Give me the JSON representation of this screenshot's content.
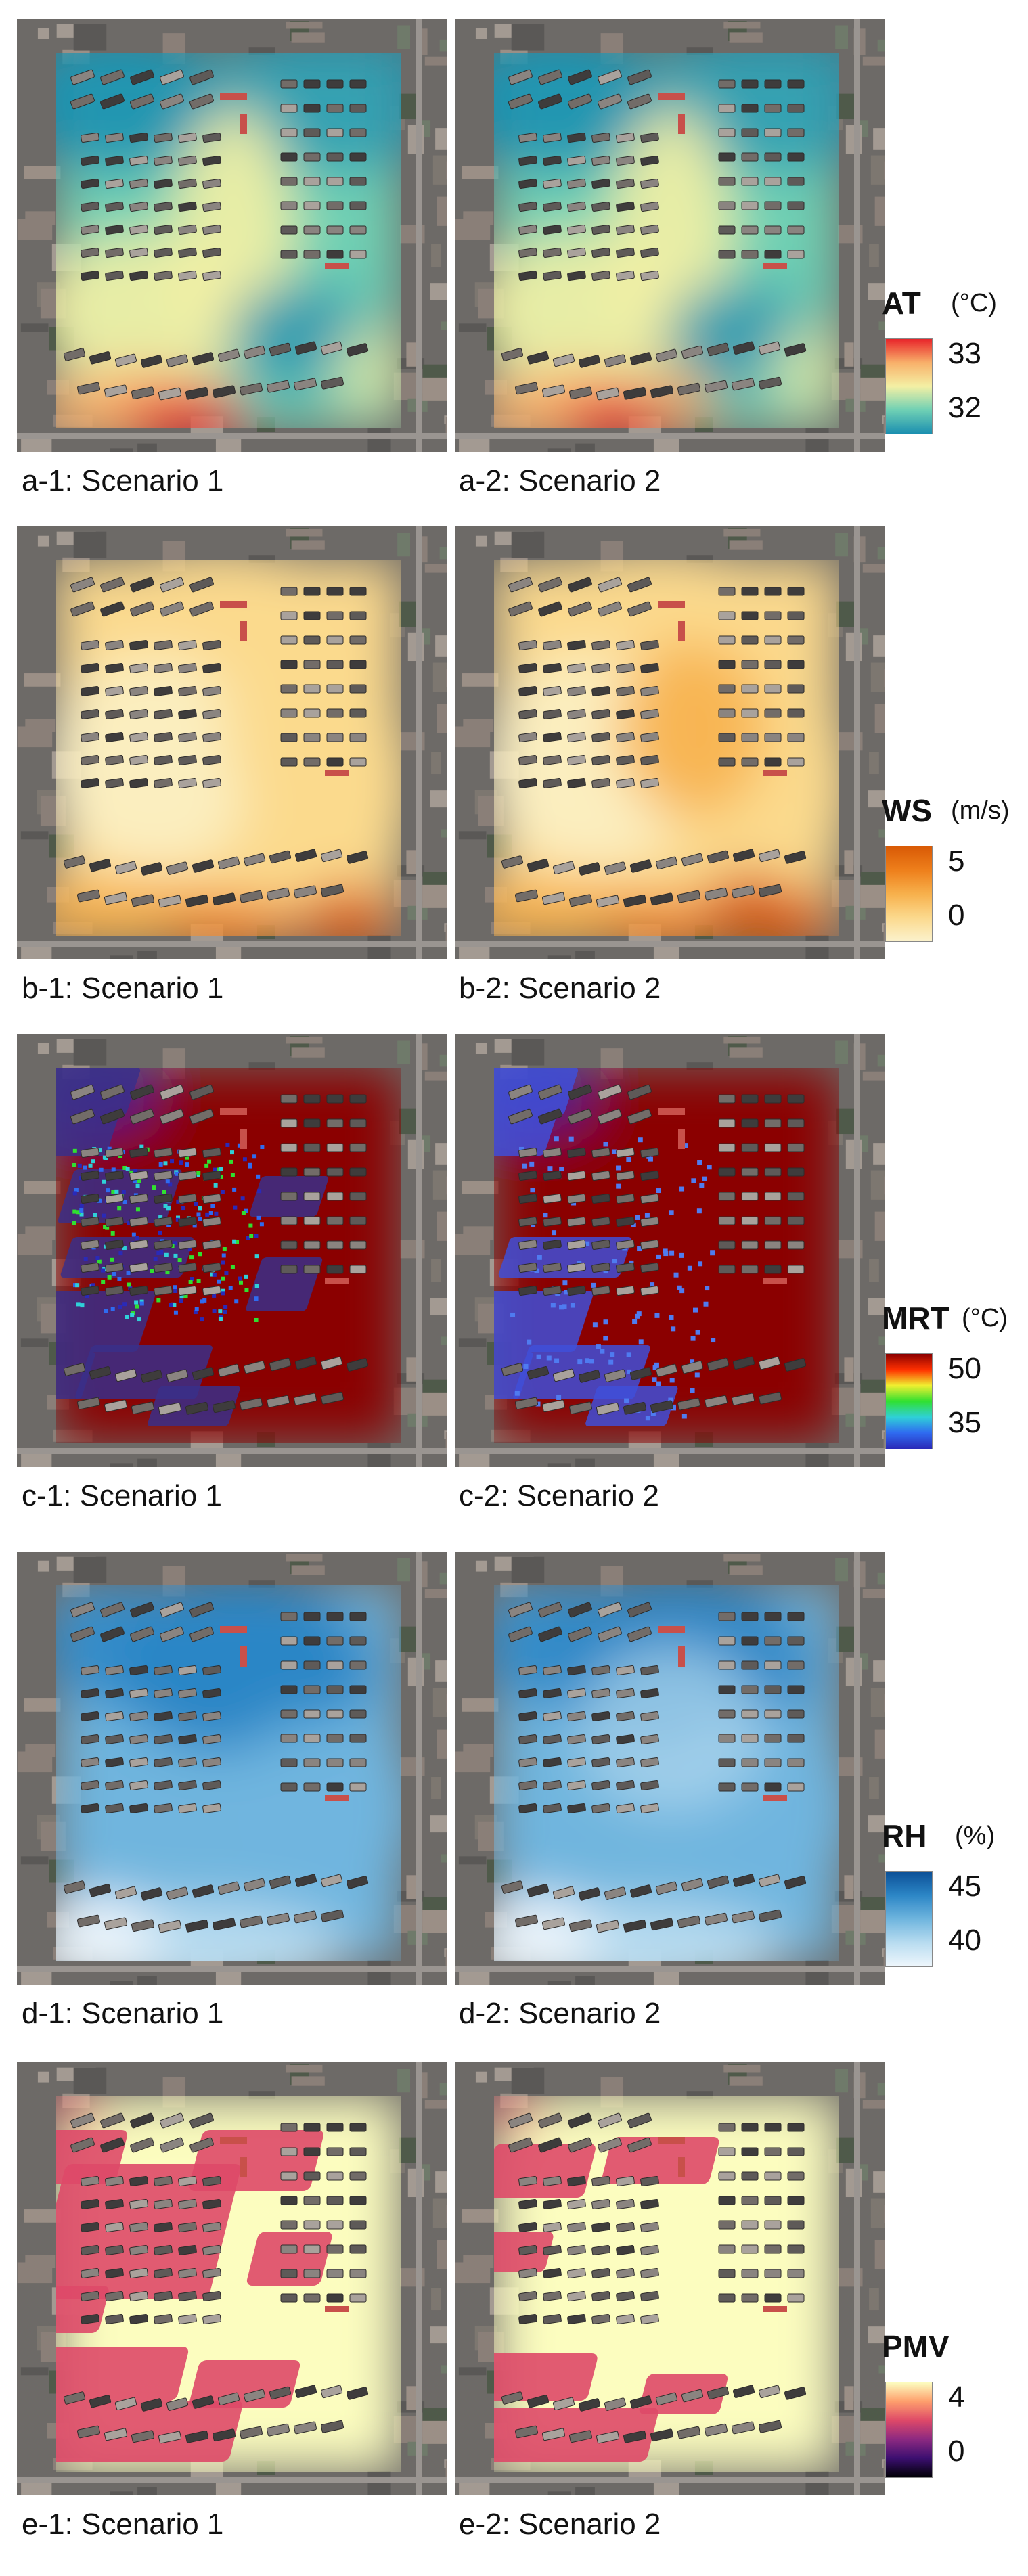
{
  "figure": {
    "rows": [
      {
        "id": "a",
        "panels": [
          {
            "caption": "a-1: Scenario 1"
          },
          {
            "caption": "a-2: Scenario 2"
          }
        ],
        "legend": {
          "variable": "AT",
          "unit": "(°C)",
          "max_label": "33",
          "min_label": "32",
          "colormap": [
            "#1b8fb0",
            "#6fd0b4",
            "#f4f0a4",
            "#f8b06a",
            "#e8242a"
          ]
        }
      },
      {
        "id": "b",
        "panels": [
          {
            "caption": "b-1: Scenario 1"
          },
          {
            "caption": "b-2: Scenario 2"
          }
        ],
        "legend": {
          "variable": "WS",
          "unit": "(m/s)",
          "max_label": "5",
          "min_label": "0",
          "colormap": [
            "#fbf2cc",
            "#fbd98d",
            "#f7b04c",
            "#ee7f1b",
            "#d95a06"
          ]
        }
      },
      {
        "id": "c",
        "panels": [
          {
            "caption": "c-1: Scenario 1"
          },
          {
            "caption": "c-2: Scenario 2"
          }
        ],
        "legend": {
          "variable": "MRT",
          "unit": "(°C)",
          "max_label": "50",
          "min_label": "35",
          "colormap": [
            "#2a2ab8",
            "#2f6bf0",
            "#2fd0d8",
            "#30e030",
            "#f0f030",
            "#ff3000",
            "#8b0000"
          ]
        }
      },
      {
        "id": "d",
        "panels": [
          {
            "caption": "d-1: Scenario 1"
          },
          {
            "caption": "d-2: Scenario 2"
          }
        ],
        "legend": {
          "variable": "RH",
          "unit": "(%)",
          "max_label": "45",
          "min_label": "40",
          "colormap": [
            "#eef6fc",
            "#b8dcf0",
            "#6fb5de",
            "#2c86c6",
            "#0b4f96"
          ]
        }
      },
      {
        "id": "e",
        "panels": [
          {
            "caption": "e-1: Scenario 1"
          },
          {
            "caption": "e-2: Scenario 2"
          }
        ],
        "legend": {
          "variable": "PMV",
          "unit": "",
          "max_label": "4",
          "min_label": "0",
          "colormap": [
            "#000004",
            "#3b0f70",
            "#8c2981",
            "#de4968",
            "#fe9f6d",
            "#fcfdbf"
          ]
        }
      }
    ]
  }
}
